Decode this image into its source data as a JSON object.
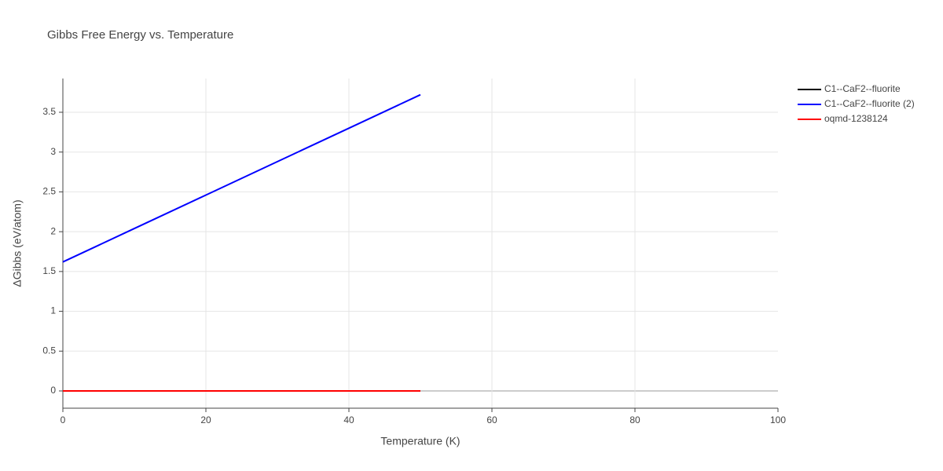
{
  "chart_data": {
    "type": "line",
    "title": "Gibbs Free Energy vs. Temperature",
    "x_label": "Temperature (K)",
    "y_label": "ΔGibbs (eV/atom)",
    "x": [
      0,
      10,
      20,
      30,
      40,
      50
    ],
    "series": [
      {
        "name": "C1--CaF2--fluorite",
        "color": "#000000",
        "values": [
          0,
          0,
          0,
          0,
          0,
          0
        ]
      },
      {
        "name": "C1--CaF2--fluorite (2)",
        "color": "#0000ff",
        "values": [
          1.62,
          2.04,
          2.46,
          2.88,
          3.3,
          3.72
        ]
      },
      {
        "name": "oqmd-1238124",
        "color": "#ff0000",
        "values": [
          0,
          0,
          0,
          0,
          0,
          0
        ]
      }
    ],
    "xlim": [
      0,
      100
    ],
    "xticks": [
      0,
      20,
      40,
      60,
      80,
      100
    ],
    "ylim": [
      -0.217,
      3.924
    ],
    "yticks": [
      0,
      0.5,
      1,
      1.5,
      2,
      2.5,
      3,
      3.5
    ],
    "grid": true,
    "legend": "top-right"
  }
}
